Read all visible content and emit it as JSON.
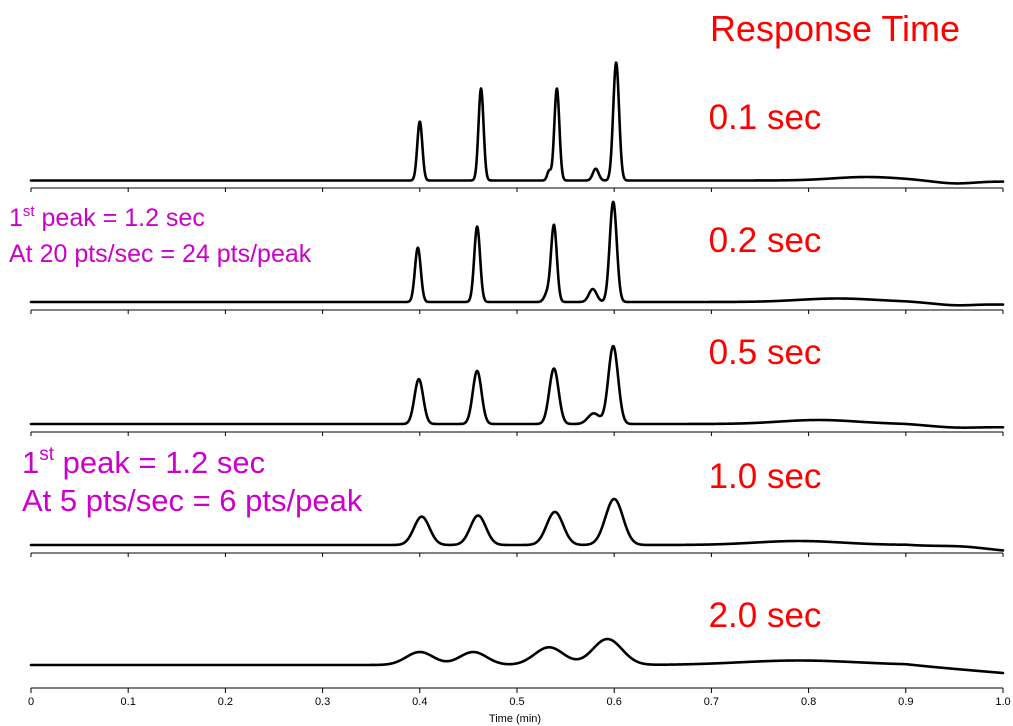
{
  "chart_data": {
    "type": "line",
    "title": "Response Time",
    "xlabel": "Time (min)",
    "xlim": [
      0,
      1.0
    ],
    "x_ticks": [
      "0",
      "0.1",
      "0.2",
      "0.3",
      "0.4",
      "0.5",
      "0.6",
      "0.7",
      "0.8",
      "0.9",
      "1.0"
    ],
    "grid": false,
    "line_color": "#000000",
    "label_color": "#ff0000",
    "annotation_color": "#cc00cc",
    "series": [
      {
        "name": "0.1 sec",
        "peaks": [
          {
            "t": 0.4,
            "height": 0.5,
            "width": 0.0026
          },
          {
            "t": 0.463,
            "height": 0.78,
            "width": 0.0026
          },
          {
            "t": 0.533,
            "height": 0.08,
            "width": 0.002
          },
          {
            "t": 0.541,
            "height": 0.78,
            "width": 0.0026
          },
          {
            "t": 0.581,
            "height": 0.1,
            "width": 0.003
          },
          {
            "t": 0.602,
            "height": 1.0,
            "width": 0.003
          }
        ]
      },
      {
        "name": "0.2 sec",
        "peaks": [
          {
            "t": 0.398,
            "height": 0.46,
            "width": 0.003
          },
          {
            "t": 0.459,
            "height": 0.64,
            "width": 0.003
          },
          {
            "t": 0.531,
            "height": 0.07,
            "width": 0.003
          },
          {
            "t": 0.538,
            "height": 0.65,
            "width": 0.003
          },
          {
            "t": 0.578,
            "height": 0.11,
            "width": 0.004
          },
          {
            "t": 0.599,
            "height": 0.85,
            "width": 0.0036
          }
        ]
      },
      {
        "name": "0.5 sec",
        "peaks": [
          {
            "t": 0.399,
            "height": 0.38,
            "width": 0.0045
          },
          {
            "t": 0.459,
            "height": 0.45,
            "width": 0.0045
          },
          {
            "t": 0.538,
            "height": 0.47,
            "width": 0.0048
          },
          {
            "t": 0.579,
            "height": 0.09,
            "width": 0.006
          },
          {
            "t": 0.599,
            "height": 0.66,
            "width": 0.005
          }
        ]
      },
      {
        "name": "1.0 sec",
        "peaks": [
          {
            "t": 0.402,
            "height": 0.24,
            "width": 0.008
          },
          {
            "t": 0.46,
            "height": 0.25,
            "width": 0.008
          },
          {
            "t": 0.539,
            "height": 0.28,
            "width": 0.0085
          },
          {
            "t": 0.6,
            "height": 0.39,
            "width": 0.009
          }
        ]
      },
      {
        "name": "2.0 sec",
        "peaks": [
          {
            "t": 0.4,
            "height": 0.11,
            "width": 0.014
          },
          {
            "t": 0.455,
            "height": 0.11,
            "width": 0.014
          },
          {
            "t": 0.533,
            "height": 0.15,
            "width": 0.015
          },
          {
            "t": 0.593,
            "height": 0.22,
            "width": 0.015
          }
        ]
      }
    ],
    "annotations": [
      {
        "line1_main": "1",
        "line1_sup": "st",
        "line1_rest": " peak = 1.2 sec",
        "line2": "At 20 pts/sec = 24 pts/peak"
      },
      {
        "line1_main": "1",
        "line1_sup": "st",
        "line1_rest": " peak = 1.2 sec",
        "line2": "At 5 pts/sec = 6 pts/peak"
      }
    ]
  }
}
